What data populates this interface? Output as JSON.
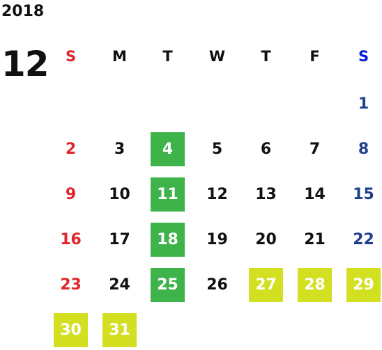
{
  "year": "2018",
  "month": "12",
  "weekdays": [
    "S",
    "M",
    "T",
    "W",
    "T",
    "F",
    "S"
  ],
  "colors": {
    "sunday": "#e0262a",
    "saturday": "#1f3f8f",
    "saturday_header": "#0a1adf",
    "highlight_green": "#3db34a",
    "highlight_lime": "#d3e021"
  },
  "weeks": [
    [
      "",
      "",
      "",
      "",
      "",
      "",
      "1"
    ],
    [
      "2",
      "3",
      "4",
      "5",
      "6",
      "7",
      "8"
    ],
    [
      "9",
      "10",
      "11",
      "12",
      "13",
      "14",
      "15"
    ],
    [
      "16",
      "17",
      "18",
      "19",
      "20",
      "21",
      "22"
    ],
    [
      "23",
      "24",
      "25",
      "26",
      "27",
      "28",
      "29"
    ],
    [
      "30",
      "31",
      "",
      "",
      "",
      "",
      ""
    ]
  ],
  "highlights": {
    "green": [
      "4",
      "11",
      "18",
      "25"
    ],
    "lime": [
      "27",
      "28",
      "29",
      "30",
      "31"
    ]
  }
}
